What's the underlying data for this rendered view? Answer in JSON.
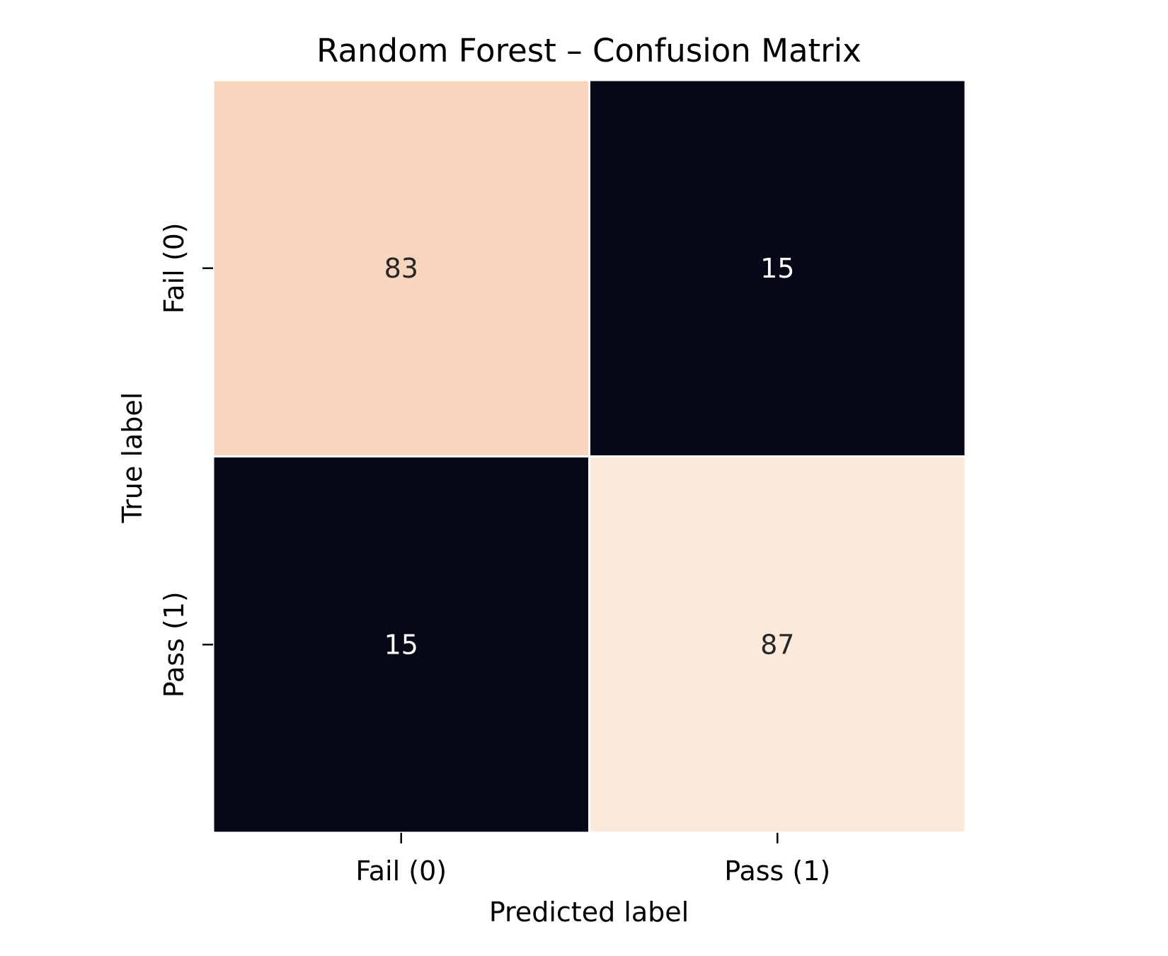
{
  "chart_data": {
    "type": "heatmap",
    "title": "Random Forest – Confusion Matrix",
    "xlabel": "Predicted label",
    "ylabel": "True label",
    "x_categories": [
      "Fail (0)",
      "Pass (1)"
    ],
    "y_categories": [
      "Fail (0)",
      "Pass (1)"
    ],
    "values": [
      [
        83,
        15
      ],
      [
        15,
        87
      ]
    ],
    "value_range": [
      15,
      87
    ],
    "colormap": "rocket",
    "colorbar": false,
    "grid": false,
    "cell_colors": [
      [
        "#f7d6bd",
        "#050817"
      ],
      [
        "#050817",
        "#fbeadb"
      ]
    ],
    "cell_text_colors": [
      [
        "#262626",
        "#ffffff"
      ],
      [
        "#ffffff",
        "#262626"
      ]
    ],
    "cell_border_color": "#ffffff"
  }
}
